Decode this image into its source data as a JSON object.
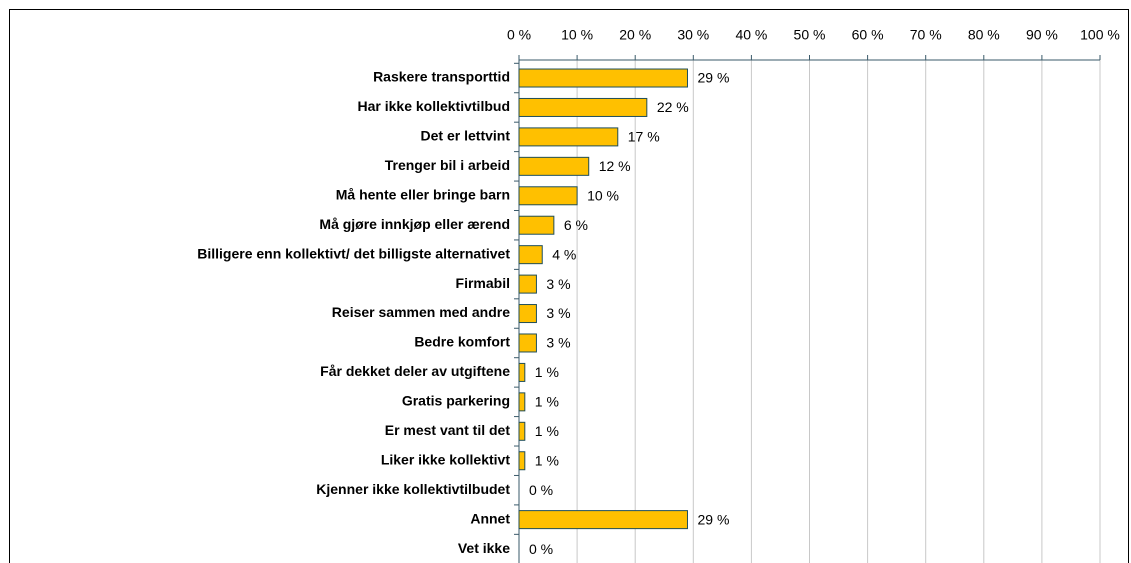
{
  "chart_data": {
    "type": "bar",
    "orientation": "horizontal",
    "categories": [
      "Raskere transporttid",
      "Har ikke kollektivtilbud",
      "Det er lettvint",
      "Trenger bil i arbeid",
      "Må hente eller bringe barn",
      "Må gjøre innkjøp eller ærend",
      "Billigere enn kollektivt/ det billigste alternativet",
      "Firmabil",
      "Reiser sammen med andre",
      "Bedre komfort",
      "Får dekket deler av utgiftene",
      "Gratis parkering",
      "Er mest vant til det",
      "Liker ikke kollektivt",
      "Kjenner ikke kollektivtilbudet",
      "Annet",
      "Vet ikke"
    ],
    "values": [
      29,
      22,
      17,
      12,
      10,
      6,
      4,
      3,
      3,
      3,
      1,
      1,
      1,
      1,
      0,
      29,
      0
    ],
    "value_labels": [
      "29 %",
      "22 %",
      "17 %",
      "12 %",
      "10 %",
      "6 %",
      "4 %",
      "3 %",
      "3 %",
      "3 %",
      "1 %",
      "1 %",
      "1 %",
      "1 %",
      "0 %",
      "29 %",
      "0 %"
    ],
    "color": "#ffc000",
    "xlim": [
      0,
      100
    ],
    "xticks": [
      {
        "value": 0,
        "label": "0 %"
      },
      {
        "value": 10,
        "label": "10 %"
      },
      {
        "value": 20,
        "label": "20 %"
      },
      {
        "value": 30,
        "label": "30 %"
      },
      {
        "value": 40,
        "label": "40 %"
      },
      {
        "value": 50,
        "label": "50 %"
      },
      {
        "value": 60,
        "label": "60 %"
      },
      {
        "value": 70,
        "label": "70 %"
      },
      {
        "value": 80,
        "label": "80 %"
      },
      {
        "value": 90,
        "label": "90 %"
      },
      {
        "value": 100,
        "label": "100 %"
      }
    ],
    "grid": true
  }
}
